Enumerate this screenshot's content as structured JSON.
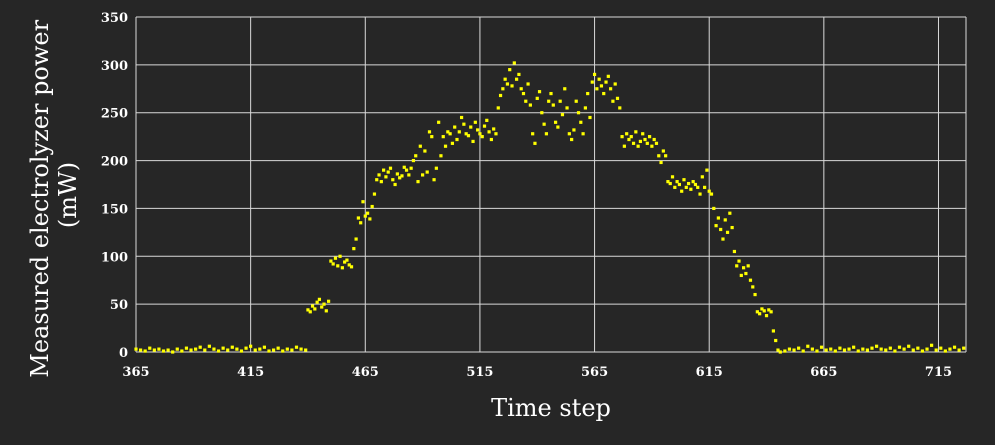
{
  "chart_data": {
    "type": "scatter",
    "title": "",
    "xlabel": "Time step",
    "ylabel_lines": [
      "Measured electrolyzer power",
      "(mW)"
    ],
    "xlim": [
      365,
      727
    ],
    "ylim": [
      0,
      350
    ],
    "x_ticks": [
      365,
      415,
      465,
      515,
      565,
      615,
      665,
      715
    ],
    "y_ticks": [
      0,
      50,
      100,
      150,
      200,
      250,
      300,
      350
    ],
    "grid": true,
    "legend": "none",
    "colors": {
      "background": "#262626",
      "grid": "#d9d9d9",
      "point": "#ffff00",
      "text": "#ffffff"
    },
    "series": [
      {
        "points": [
          [
            365,
            3
          ],
          [
            367,
            2
          ],
          [
            369,
            1
          ],
          [
            371,
            4
          ],
          [
            373,
            2
          ],
          [
            375,
            3
          ],
          [
            377,
            1
          ],
          [
            379,
            2
          ],
          [
            381,
            0
          ],
          [
            383,
            3
          ],
          [
            385,
            1
          ],
          [
            387,
            4
          ],
          [
            389,
            2
          ],
          [
            391,
            3
          ],
          [
            393,
            5
          ],
          [
            395,
            2
          ],
          [
            397,
            6
          ],
          [
            399,
            3
          ],
          [
            401,
            1
          ],
          [
            403,
            4
          ],
          [
            405,
            2
          ],
          [
            407,
            5
          ],
          [
            409,
            3
          ],
          [
            411,
            1
          ],
          [
            413,
            4
          ],
          [
            415,
            6
          ],
          [
            417,
            2
          ],
          [
            419,
            3
          ],
          [
            421,
            5
          ],
          [
            423,
            1
          ],
          [
            425,
            2
          ],
          [
            427,
            4
          ],
          [
            429,
            1
          ],
          [
            431,
            3
          ],
          [
            433,
            2
          ],
          [
            435,
            5
          ],
          [
            437,
            3
          ],
          [
            439,
            2
          ],
          [
            440,
            44
          ],
          [
            441,
            42
          ],
          [
            442,
            48
          ],
          [
            443,
            45
          ],
          [
            444,
            52
          ],
          [
            445,
            55
          ],
          [
            446,
            47
          ],
          [
            447,
            50
          ],
          [
            448,
            43
          ],
          [
            449,
            53
          ],
          [
            450,
            95
          ],
          [
            451,
            92
          ],
          [
            452,
            98
          ],
          [
            453,
            90
          ],
          [
            454,
            100
          ],
          [
            455,
            88
          ],
          [
            456,
            94
          ],
          [
            457,
            96
          ],
          [
            458,
            91
          ],
          [
            459,
            89
          ],
          [
            460,
            108
          ],
          [
            461,
            118
          ],
          [
            462,
            140
          ],
          [
            463,
            135
          ],
          [
            464,
            157
          ],
          [
            465,
            142
          ],
          [
            466,
            145
          ],
          [
            467,
            139
          ],
          [
            468,
            152
          ],
          [
            469,
            165
          ],
          [
            470,
            180
          ],
          [
            471,
            185
          ],
          [
            472,
            178
          ],
          [
            473,
            190
          ],
          [
            474,
            183
          ],
          [
            475,
            188
          ],
          [
            476,
            192
          ],
          [
            477,
            180
          ],
          [
            478,
            175
          ],
          [
            479,
            186
          ],
          [
            480,
            182
          ],
          [
            481,
            184
          ],
          [
            482,
            193
          ],
          [
            483,
            190
          ],
          [
            484,
            185
          ],
          [
            485,
            192
          ],
          [
            486,
            200
          ],
          [
            487,
            205
          ],
          [
            488,
            178
          ],
          [
            489,
            215
          ],
          [
            490,
            185
          ],
          [
            491,
            210
          ],
          [
            492,
            188
          ],
          [
            493,
            230
          ],
          [
            494,
            225
          ],
          [
            495,
            180
          ],
          [
            496,
            192
          ],
          [
            497,
            240
          ],
          [
            498,
            205
          ],
          [
            499,
            225
          ],
          [
            500,
            215
          ],
          [
            501,
            230
          ],
          [
            502,
            228
          ],
          [
            503,
            218
          ],
          [
            504,
            235
          ],
          [
            505,
            222
          ],
          [
            506,
            230
          ],
          [
            507,
            245
          ],
          [
            508,
            238
          ],
          [
            509,
            228
          ],
          [
            510,
            226
          ],
          [
            511,
            235
          ],
          [
            512,
            220
          ],
          [
            513,
            240
          ],
          [
            514,
            232
          ],
          [
            515,
            228
          ],
          [
            516,
            225
          ],
          [
            517,
            236
          ],
          [
            518,
            242
          ],
          [
            519,
            230
          ],
          [
            520,
            222
          ],
          [
            521,
            233
          ],
          [
            522,
            228
          ],
          [
            523,
            255
          ],
          [
            524,
            268
          ],
          [
            525,
            275
          ],
          [
            526,
            285
          ],
          [
            527,
            280
          ],
          [
            528,
            295
          ],
          [
            529,
            278
          ],
          [
            530,
            302
          ],
          [
            531,
            285
          ],
          [
            532,
            290
          ],
          [
            533,
            275
          ],
          [
            534,
            270
          ],
          [
            535,
            262
          ],
          [
            536,
            280
          ],
          [
            537,
            258
          ],
          [
            538,
            228
          ],
          [
            539,
            218
          ],
          [
            540,
            265
          ],
          [
            541,
            272
          ],
          [
            542,
            250
          ],
          [
            543,
            238
          ],
          [
            544,
            228
          ],
          [
            545,
            262
          ],
          [
            546,
            270
          ],
          [
            547,
            258
          ],
          [
            548,
            240
          ],
          [
            549,
            235
          ],
          [
            550,
            262
          ],
          [
            551,
            248
          ],
          [
            552,
            275
          ],
          [
            553,
            255
          ],
          [
            554,
            228
          ],
          [
            555,
            222
          ],
          [
            556,
            232
          ],
          [
            557,
            262
          ],
          [
            558,
            250
          ],
          [
            559,
            240
          ],
          [
            560,
            228
          ],
          [
            561,
            255
          ],
          [
            562,
            270
          ],
          [
            563,
            245
          ],
          [
            564,
            282
          ],
          [
            565,
            290
          ],
          [
            566,
            275
          ],
          [
            567,
            285
          ],
          [
            568,
            278
          ],
          [
            569,
            270
          ],
          [
            570,
            282
          ],
          [
            571,
            288
          ],
          [
            572,
            275
          ],
          [
            573,
            262
          ],
          [
            574,
            280
          ],
          [
            575,
            265
          ],
          [
            576,
            255
          ],
          [
            577,
            225
          ],
          [
            578,
            215
          ],
          [
            579,
            228
          ],
          [
            580,
            222
          ],
          [
            581,
            225
          ],
          [
            582,
            218
          ],
          [
            583,
            230
          ],
          [
            584,
            215
          ],
          [
            585,
            220
          ],
          [
            586,
            228
          ],
          [
            587,
            222
          ],
          [
            588,
            218
          ],
          [
            589,
            225
          ],
          [
            590,
            215
          ],
          [
            591,
            222
          ],
          [
            592,
            218
          ],
          [
            593,
            205
          ],
          [
            594,
            198
          ],
          [
            595,
            210
          ],
          [
            596,
            205
          ],
          [
            597,
            178
          ],
          [
            598,
            176
          ],
          [
            599,
            183
          ],
          [
            600,
            172
          ],
          [
            601,
            178
          ],
          [
            602,
            175
          ],
          [
            603,
            168
          ],
          [
            604,
            180
          ],
          [
            605,
            172
          ],
          [
            606,
            176
          ],
          [
            607,
            170
          ],
          [
            608,
            178
          ],
          [
            609,
            175
          ],
          [
            610,
            172
          ],
          [
            611,
            165
          ],
          [
            612,
            183
          ],
          [
            613,
            172
          ],
          [
            614,
            190
          ],
          [
            615,
            168
          ],
          [
            616,
            165
          ],
          [
            617,
            150
          ],
          [
            618,
            132
          ],
          [
            619,
            140
          ],
          [
            620,
            128
          ],
          [
            621,
            118
          ],
          [
            622,
            138
          ],
          [
            623,
            125
          ],
          [
            624,
            145
          ],
          [
            625,
            130
          ],
          [
            626,
            105
          ],
          [
            627,
            90
          ],
          [
            628,
            95
          ],
          [
            629,
            80
          ],
          [
            630,
            88
          ],
          [
            631,
            82
          ],
          [
            632,
            90
          ],
          [
            633,
            75
          ],
          [
            634,
            68
          ],
          [
            635,
            60
          ],
          [
            636,
            42
          ],
          [
            637,
            40
          ],
          [
            638,
            45
          ],
          [
            639,
            43
          ],
          [
            640,
            38
          ],
          [
            641,
            44
          ],
          [
            642,
            42
          ],
          [
            643,
            22
          ],
          [
            644,
            12
          ],
          [
            645,
            2
          ],
          [
            646,
            0
          ],
          [
            648,
            1
          ],
          [
            650,
            3
          ],
          [
            652,
            2
          ],
          [
            654,
            4
          ],
          [
            656,
            1
          ],
          [
            658,
            6
          ],
          [
            660,
            3
          ],
          [
            662,
            1
          ],
          [
            664,
            5
          ],
          [
            666,
            2
          ],
          [
            668,
            3
          ],
          [
            670,
            1
          ],
          [
            672,
            4
          ],
          [
            674,
            2
          ],
          [
            676,
            3
          ],
          [
            678,
            5
          ],
          [
            680,
            1
          ],
          [
            682,
            3
          ],
          [
            684,
            2
          ],
          [
            686,
            4
          ],
          [
            688,
            6
          ],
          [
            690,
            3
          ],
          [
            692,
            2
          ],
          [
            694,
            4
          ],
          [
            696,
            1
          ],
          [
            698,
            5
          ],
          [
            700,
            3
          ],
          [
            702,
            6
          ],
          [
            704,
            2
          ],
          [
            706,
            4
          ],
          [
            708,
            1
          ],
          [
            710,
            3
          ],
          [
            712,
            7
          ],
          [
            714,
            2
          ],
          [
            716,
            4
          ],
          [
            718,
            1
          ],
          [
            720,
            3
          ],
          [
            722,
            5
          ],
          [
            724,
            2
          ],
          [
            726,
            4
          ]
        ]
      }
    ]
  }
}
